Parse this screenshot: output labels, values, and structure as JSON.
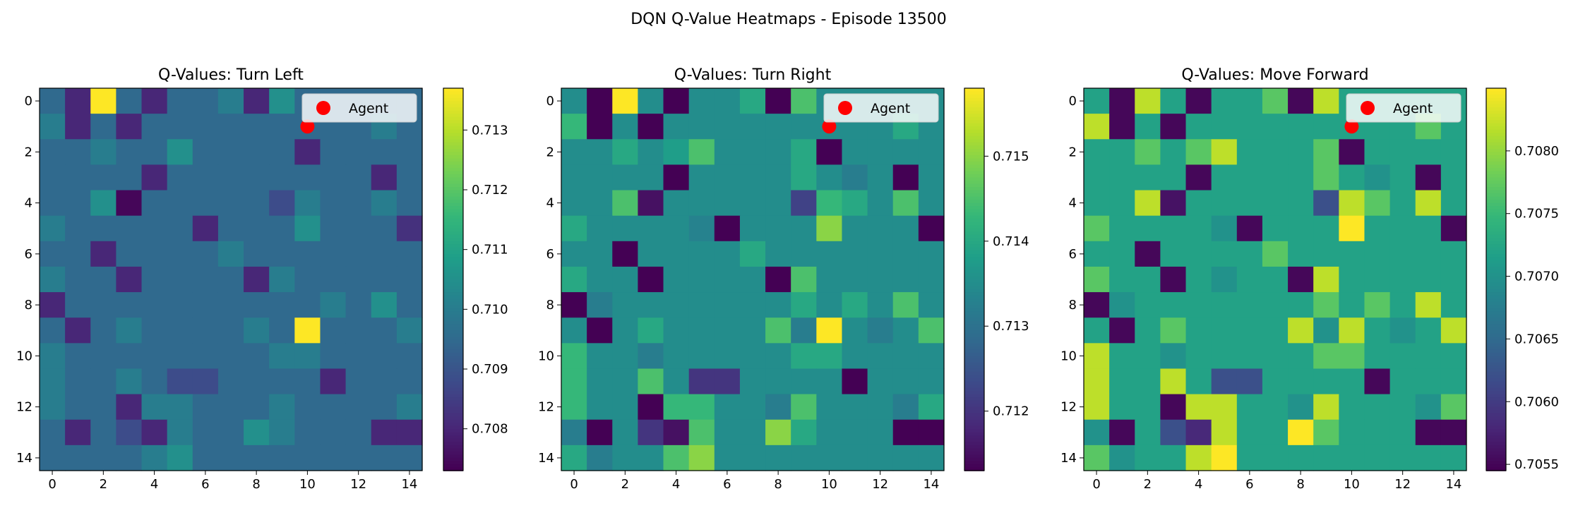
{
  "suptitle": "DQN Q-Value Heatmaps - Episode 13500",
  "colors": {
    "viridis": [
      "#440154",
      "#482878",
      "#3e4989",
      "#31688e",
      "#26828e",
      "#1f9e89",
      "#35b779",
      "#6ece58",
      "#b5de2b",
      "#fde725"
    ],
    "agent_marker": "#ff0000"
  },
  "chart_data": [
    {
      "type": "heatmap",
      "title": "Q-Values: Turn Left",
      "xticks": [
        0,
        2,
        4,
        6,
        8,
        10,
        12,
        14
      ],
      "yticks": [
        0,
        2,
        4,
        6,
        8,
        10,
        12,
        14
      ],
      "vmin": 0.7073,
      "vmax": 0.7137,
      "colorbar_ticks": [
        0.708,
        0.709,
        0.71,
        0.711,
        0.712,
        0.713
      ],
      "legend": {
        "label": "Agent",
        "placement": "upper right"
      },
      "agent": {
        "x": 10,
        "y": 1
      },
      "z": [
        [
          0.7095,
          0.708,
          0.7137,
          0.7095,
          0.708,
          0.7095,
          0.7095,
          0.71,
          0.708,
          0.7105,
          0.7095,
          0.7095,
          0.7095,
          0.7095,
          0.7095
        ],
        [
          0.71,
          0.708,
          0.7095,
          0.708,
          0.7095,
          0.7095,
          0.7095,
          0.7095,
          0.7095,
          0.7095,
          0.7095,
          0.7095,
          0.7095,
          0.71,
          0.7095
        ],
        [
          0.7095,
          0.7095,
          0.71,
          0.7095,
          0.7095,
          0.7105,
          0.7095,
          0.7095,
          0.7095,
          0.7095,
          0.708,
          0.7095,
          0.7095,
          0.7095,
          0.7095
        ],
        [
          0.7095,
          0.7095,
          0.7095,
          0.7095,
          0.708,
          0.7095,
          0.7095,
          0.7095,
          0.7095,
          0.7095,
          0.7095,
          0.7095,
          0.7095,
          0.708,
          0.7095
        ],
        [
          0.7095,
          0.7095,
          0.7105,
          0.7074,
          0.7095,
          0.7095,
          0.7095,
          0.7095,
          0.7095,
          0.7088,
          0.71,
          0.7095,
          0.7095,
          0.71,
          0.7095
        ],
        [
          0.71,
          0.7095,
          0.7095,
          0.7095,
          0.7095,
          0.7095,
          0.708,
          0.7095,
          0.7095,
          0.7095,
          0.7105,
          0.7095,
          0.7095,
          0.7095,
          0.7082
        ],
        [
          0.7095,
          0.7095,
          0.708,
          0.7095,
          0.7095,
          0.7095,
          0.7095,
          0.71,
          0.7095,
          0.7095,
          0.7095,
          0.7095,
          0.7095,
          0.7095,
          0.7095
        ],
        [
          0.71,
          0.7095,
          0.7095,
          0.708,
          0.7095,
          0.7095,
          0.7095,
          0.7095,
          0.708,
          0.71,
          0.7095,
          0.7095,
          0.7095,
          0.7095,
          0.7095
        ],
        [
          0.708,
          0.7095,
          0.7095,
          0.7095,
          0.7095,
          0.7095,
          0.7095,
          0.7095,
          0.7095,
          0.7095,
          0.7095,
          0.71,
          0.7095,
          0.7105,
          0.7095
        ],
        [
          0.7095,
          0.708,
          0.7095,
          0.71,
          0.7095,
          0.7095,
          0.7095,
          0.7095,
          0.71,
          0.7095,
          0.7137,
          0.7095,
          0.7095,
          0.7095,
          0.71
        ],
        [
          0.71,
          0.7095,
          0.7095,
          0.7095,
          0.7095,
          0.7095,
          0.7095,
          0.7095,
          0.7095,
          0.71,
          0.71,
          0.7095,
          0.7095,
          0.7095,
          0.7095
        ],
        [
          0.71,
          0.7095,
          0.7095,
          0.71,
          0.7095,
          0.7088,
          0.7088,
          0.7095,
          0.7095,
          0.7095,
          0.7095,
          0.708,
          0.7095,
          0.7095,
          0.7095
        ],
        [
          0.71,
          0.7095,
          0.7095,
          0.708,
          0.71,
          0.71,
          0.7095,
          0.7095,
          0.7095,
          0.71,
          0.7095,
          0.7095,
          0.7095,
          0.7095,
          0.71
        ],
        [
          0.7095,
          0.708,
          0.7095,
          0.7088,
          0.708,
          0.71,
          0.7095,
          0.7095,
          0.7105,
          0.71,
          0.7095,
          0.7095,
          0.7095,
          0.708,
          0.708
        ],
        [
          0.7095,
          0.7095,
          0.7095,
          0.7095,
          0.71,
          0.7105,
          0.7095,
          0.7095,
          0.7095,
          0.7095,
          0.7095,
          0.7095,
          0.7095,
          0.7095,
          0.7095
        ]
      ]
    },
    {
      "type": "heatmap",
      "title": "Q-Values: Turn Right",
      "xticks": [
        0,
        2,
        4,
        6,
        8,
        10,
        12,
        14
      ],
      "yticks": [
        0,
        2,
        4,
        6,
        8,
        10,
        12,
        14
      ],
      "vmin": 0.7113,
      "vmax": 0.7158,
      "colorbar_ticks": [
        0.712,
        0.713,
        0.714,
        0.715
      ],
      "legend": {
        "label": "Agent",
        "placement": "upper right"
      },
      "agent": {
        "x": 10,
        "y": 1
      },
      "z": [
        [
          0.7135,
          0.7113,
          0.7158,
          0.7135,
          0.7113,
          0.7135,
          0.7135,
          0.714,
          0.7113,
          0.7145,
          0.7135,
          0.7135,
          0.7135,
          0.7135,
          0.7135
        ],
        [
          0.7143,
          0.7113,
          0.7135,
          0.7113,
          0.7135,
          0.7135,
          0.7135,
          0.7135,
          0.7135,
          0.7135,
          0.7135,
          0.7135,
          0.7135,
          0.714,
          0.7135
        ],
        [
          0.7135,
          0.7135,
          0.714,
          0.7135,
          0.7138,
          0.7145,
          0.7135,
          0.7135,
          0.7135,
          0.714,
          0.7113,
          0.7135,
          0.7135,
          0.7135,
          0.7135
        ],
        [
          0.7135,
          0.7135,
          0.7135,
          0.7135,
          0.7113,
          0.7135,
          0.7135,
          0.7135,
          0.7135,
          0.714,
          0.7135,
          0.7132,
          0.7135,
          0.7113,
          0.7135
        ],
        [
          0.7135,
          0.7135,
          0.7145,
          0.7115,
          0.7135,
          0.7135,
          0.7135,
          0.7135,
          0.7135,
          0.7122,
          0.7143,
          0.714,
          0.7135,
          0.7145,
          0.7135
        ],
        [
          0.714,
          0.7135,
          0.7135,
          0.7135,
          0.7135,
          0.7133,
          0.7113,
          0.7135,
          0.7135,
          0.7135,
          0.715,
          0.7135,
          0.7135,
          0.7135,
          0.7113
        ],
        [
          0.7135,
          0.7135,
          0.7113,
          0.7135,
          0.7135,
          0.7135,
          0.7135,
          0.714,
          0.7135,
          0.7135,
          0.7135,
          0.7135,
          0.7135,
          0.7135,
          0.7135
        ],
        [
          0.714,
          0.7135,
          0.7135,
          0.7113,
          0.7135,
          0.7135,
          0.7135,
          0.7135,
          0.7113,
          0.7145,
          0.7135,
          0.7135,
          0.7135,
          0.7135,
          0.7135
        ],
        [
          0.7113,
          0.7132,
          0.7135,
          0.7135,
          0.7135,
          0.7135,
          0.7135,
          0.7135,
          0.7135,
          0.714,
          0.7135,
          0.714,
          0.7135,
          0.7145,
          0.7135
        ],
        [
          0.7135,
          0.7113,
          0.7135,
          0.714,
          0.7135,
          0.7135,
          0.7135,
          0.7135,
          0.7145,
          0.7132,
          0.7158,
          0.7135,
          0.7132,
          0.7135,
          0.7145
        ],
        [
          0.7143,
          0.7135,
          0.7135,
          0.7132,
          0.7135,
          0.7135,
          0.7135,
          0.7135,
          0.7135,
          0.714,
          0.714,
          0.7135,
          0.7135,
          0.7135,
          0.7135
        ],
        [
          0.7143,
          0.7135,
          0.7135,
          0.7145,
          0.7135,
          0.712,
          0.712,
          0.7135,
          0.7135,
          0.7135,
          0.7135,
          0.7113,
          0.7135,
          0.7135,
          0.7135
        ],
        [
          0.7143,
          0.7135,
          0.7135,
          0.7113,
          0.7143,
          0.7143,
          0.7135,
          0.7135,
          0.7132,
          0.7145,
          0.7135,
          0.7135,
          0.7135,
          0.7132,
          0.714
        ],
        [
          0.7132,
          0.7113,
          0.7135,
          0.712,
          0.7115,
          0.7145,
          0.7135,
          0.7135,
          0.715,
          0.714,
          0.7135,
          0.7135,
          0.7135,
          0.7113,
          0.7113
        ],
        [
          0.714,
          0.7132,
          0.7135,
          0.7135,
          0.7145,
          0.715,
          0.7135,
          0.7135,
          0.7135,
          0.7135,
          0.7135,
          0.7135,
          0.7135,
          0.7135,
          0.7135
        ]
      ]
    },
    {
      "type": "heatmap",
      "title": "Q-Values: Move Forward",
      "xticks": [
        0,
        2,
        4,
        6,
        8,
        10,
        12,
        14
      ],
      "yticks": [
        0,
        2,
        4,
        6,
        8,
        10,
        12,
        14
      ],
      "vmin": 0.70545,
      "vmax": 0.7085,
      "colorbar_ticks": [
        0.7055,
        0.706,
        0.7065,
        0.707,
        0.7075,
        0.708
      ],
      "legend": {
        "label": "Agent",
        "placement": "upper right"
      },
      "agent": {
        "x": 10,
        "y": 1
      },
      "z": [
        [
          0.7072,
          0.7055,
          0.7082,
          0.7072,
          0.7055,
          0.7072,
          0.7072,
          0.7077,
          0.7055,
          0.7082,
          0.7072,
          0.7072,
          0.7072,
          0.7072,
          0.7072
        ],
        [
          0.7082,
          0.7055,
          0.7072,
          0.7055,
          0.7072,
          0.7072,
          0.7072,
          0.7072,
          0.7072,
          0.7072,
          0.7072,
          0.7072,
          0.7072,
          0.7077,
          0.7072
        ],
        [
          0.7072,
          0.7072,
          0.7077,
          0.7072,
          0.7077,
          0.7082,
          0.7072,
          0.7072,
          0.7072,
          0.7077,
          0.7055,
          0.7072,
          0.7072,
          0.7072,
          0.7072
        ],
        [
          0.7072,
          0.7072,
          0.7072,
          0.7072,
          0.7055,
          0.7072,
          0.7072,
          0.7072,
          0.7072,
          0.7077,
          0.7072,
          0.707,
          0.7072,
          0.7055,
          0.7072
        ],
        [
          0.7072,
          0.7072,
          0.7082,
          0.7056,
          0.7072,
          0.7072,
          0.7072,
          0.7072,
          0.7072,
          0.7062,
          0.7082,
          0.7077,
          0.7072,
          0.7082,
          0.7072
        ],
        [
          0.7077,
          0.7072,
          0.7072,
          0.7072,
          0.7072,
          0.707,
          0.7055,
          0.7072,
          0.7072,
          0.7072,
          0.7085,
          0.7072,
          0.7072,
          0.7072,
          0.7055
        ],
        [
          0.7072,
          0.7072,
          0.7055,
          0.7072,
          0.7072,
          0.7072,
          0.7072,
          0.7077,
          0.7072,
          0.7072,
          0.7072,
          0.7072,
          0.7072,
          0.7072,
          0.7072
        ],
        [
          0.7077,
          0.7072,
          0.7072,
          0.7055,
          0.7072,
          0.707,
          0.7072,
          0.7072,
          0.7055,
          0.7082,
          0.7072,
          0.7072,
          0.7072,
          0.7072,
          0.7072
        ],
        [
          0.7055,
          0.707,
          0.7072,
          0.7072,
          0.7072,
          0.7072,
          0.7072,
          0.7072,
          0.7072,
          0.7077,
          0.7072,
          0.7077,
          0.7072,
          0.7082,
          0.7072
        ],
        [
          0.7072,
          0.7055,
          0.7072,
          0.7077,
          0.7072,
          0.7072,
          0.7072,
          0.7072,
          0.7082,
          0.707,
          0.7082,
          0.7072,
          0.707,
          0.7072,
          0.7082
        ],
        [
          0.7082,
          0.7072,
          0.7072,
          0.707,
          0.7072,
          0.7072,
          0.7072,
          0.7072,
          0.7072,
          0.7077,
          0.7077,
          0.7072,
          0.7072,
          0.7072,
          0.7072
        ],
        [
          0.7082,
          0.7072,
          0.7072,
          0.7082,
          0.7072,
          0.7062,
          0.7062,
          0.7072,
          0.7072,
          0.7072,
          0.7072,
          0.7055,
          0.7072,
          0.7072,
          0.7072
        ],
        [
          0.7082,
          0.7072,
          0.7072,
          0.7055,
          0.7082,
          0.7082,
          0.7072,
          0.7072,
          0.707,
          0.7082,
          0.7072,
          0.7072,
          0.7072,
          0.707,
          0.7077
        ],
        [
          0.707,
          0.7055,
          0.7072,
          0.7062,
          0.7058,
          0.7082,
          0.7072,
          0.7072,
          0.7085,
          0.7077,
          0.7072,
          0.7072,
          0.7072,
          0.7055,
          0.7055
        ],
        [
          0.7077,
          0.707,
          0.7072,
          0.7072,
          0.7082,
          0.7085,
          0.7072,
          0.7072,
          0.7072,
          0.7072,
          0.7072,
          0.7072,
          0.7072,
          0.7072,
          0.7072
        ]
      ]
    }
  ]
}
